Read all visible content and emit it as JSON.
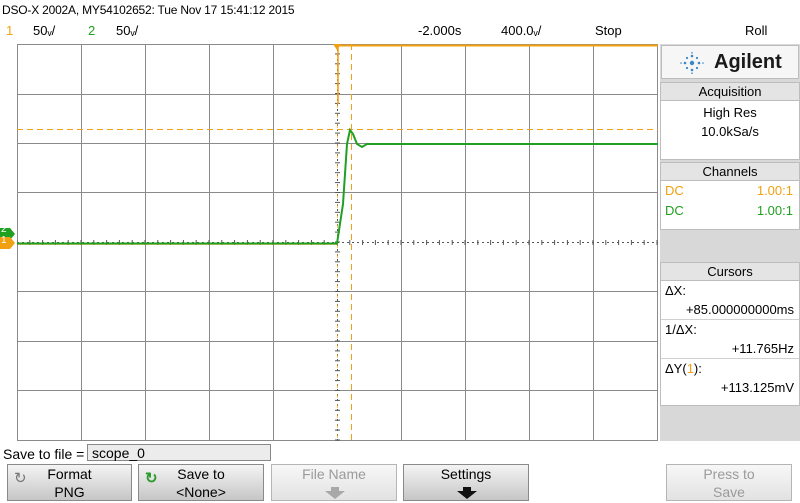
{
  "title": "DSO-X 2002A, MY54102652: Tue Nov 17 15:41:12 2015",
  "status": {
    "ch1_num": "1",
    "ch1_scale": "50ᵥ/",
    "ch2_num": "2",
    "ch2_scale": "50ᵥ/",
    "time_offset": "-2.000s",
    "time_scale": "400.0ᵥ/",
    "run_state": "Stop",
    "mode": "Roll"
  },
  "panel": {
    "brand": "Agilent",
    "acquisition": {
      "header": "Acquisition",
      "mode": "High Res",
      "rate": "10.0kSa/s"
    },
    "channels": {
      "header": "Channels",
      "rows": [
        {
          "coupling": "DC",
          "probe": "1.00:1"
        },
        {
          "coupling": "DC",
          "probe": "1.00:1"
        }
      ]
    },
    "cursors": {
      "header": "Cursors",
      "dx_label": "ΔX:",
      "dx_value": "+85.000000000ms",
      "inv_dx_label": "1/ΔX:",
      "inv_dx_value": "+11.765Hz",
      "dy_label_pre": "ΔY(",
      "dy_channel": "1",
      "dy_label_post": "):",
      "dy_value": "+113.125mV"
    }
  },
  "save": {
    "label": "Save to file =",
    "filename": "scope_0"
  },
  "softkeys": {
    "format": {
      "line1": "Format",
      "line2": "PNG"
    },
    "save_to": {
      "line1": "Save to",
      "line2": "<None>"
    },
    "file_name": {
      "line1": "File Name"
    },
    "settings": {
      "line1": "Settings"
    },
    "press_to_save": {
      "line1": "Press to",
      "line2": "Save"
    }
  },
  "marker_labels": {
    "ch2": "2",
    "ch1": "1"
  },
  "colors": {
    "ch1": "#f0a010",
    "ch2": "#20a020",
    "grid": "#8a8a8a"
  }
}
